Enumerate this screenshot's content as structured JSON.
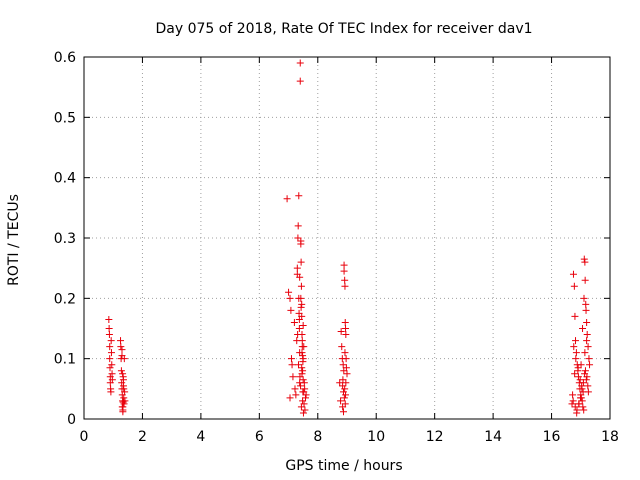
{
  "chart_data": {
    "type": "scatter",
    "title": "Day 075 of 2018, Rate Of TEC Index for receiver dav1",
    "xlabel": "GPS time / hours",
    "ylabel": "ROTI / TECUs",
    "xlim": [
      0,
      18
    ],
    "ylim": [
      0,
      0.6
    ],
    "xticks": [
      0,
      2,
      4,
      6,
      8,
      10,
      12,
      14,
      16,
      18
    ],
    "xtick_labels": [
      "0",
      "2",
      "4",
      "6",
      "8",
      "10",
      "12",
      "14",
      "16",
      "18"
    ],
    "yticks": [
      0,
      0.1,
      0.2,
      0.3,
      0.4,
      0.5,
      0.6
    ],
    "ytick_labels": [
      "0",
      "0.1",
      "0.2",
      "0.3",
      "0.4",
      "0.5",
      "0.6"
    ],
    "grid": true,
    "marker": "+",
    "color": "#e8000b",
    "series": [
      {
        "x": [
          0.85,
          0.86,
          0.87,
          0.88,
          0.88,
          0.89,
          0.9,
          0.9,
          0.91,
          0.92,
          0.93,
          0.94,
          0.95,
          0.96,
          0.97,
          1.25,
          1.26,
          1.27,
          1.28,
          1.29,
          1.3,
          1.31,
          1.32,
          1.33,
          1.33,
          1.34,
          1.35,
          1.36,
          1.37,
          1.38,
          1.39,
          1.4,
          1.3,
          1.31,
          1.33,
          1.35,
          1.36,
          1.3,
          1.32,
          1.34,
          6.95,
          7.0,
          7.05,
          7.05,
          7.08,
          7.1,
          7.12,
          7.15,
          7.2,
          7.22,
          7.25,
          7.28,
          7.3,
          7.3,
          7.32,
          7.33,
          7.35,
          7.35,
          7.37,
          7.38,
          7.38,
          7.4,
          7.4,
          7.42,
          7.42,
          7.43,
          7.44,
          7.45,
          7.45,
          7.46,
          7.47,
          7.48,
          7.48,
          7.5,
          7.5,
          7.52,
          7.53,
          7.55,
          7.56,
          7.58,
          7.6,
          7.45,
          7.47,
          7.5,
          7.36,
          7.39,
          7.41,
          7.44,
          7.46,
          7.49,
          7.51,
          7.54,
          7.31,
          7.34,
          7.37,
          7.43,
          7.46,
          7.49,
          7.52,
          7.38,
          7.42,
          7.48,
          8.75,
          8.78,
          8.8,
          8.82,
          8.84,
          8.85,
          8.86,
          8.88,
          8.9,
          8.9,
          8.92,
          8.93,
          8.94,
          8.95,
          8.96,
          8.97,
          8.98,
          9.0,
          8.85,
          8.88,
          8.91,
          8.93,
          8.96,
          8.89,
          8.92,
          8.95,
          8.87,
          8.94,
          16.7,
          16.72,
          16.75,
          16.78,
          16.8,
          16.82,
          16.85,
          16.88,
          16.9,
          16.92,
          16.95,
          16.97,
          17.0,
          17.02,
          17.05,
          17.07,
          17.1,
          17.12,
          17.14,
          17.15,
          17.17,
          17.18,
          17.2,
          17.22,
          17.25,
          17.28,
          17.3,
          16.76,
          16.83,
          16.91,
          16.98,
          17.03,
          17.08,
          17.13,
          17.19,
          17.24,
          16.74,
          16.81,
          16.87,
          16.93,
          16.99,
          17.04,
          17.09,
          17.16,
          17.21,
          17.26,
          17.11,
          17.06,
          17.14,
          17.2,
          17.01,
          16.86,
          16.79,
          16.94
        ],
        "y": [
          0.165,
          0.15,
          0.14,
          0.12,
          0.1,
          0.085,
          0.07,
          0.06,
          0.05,
          0.045,
          0.13,
          0.11,
          0.09,
          0.075,
          0.065,
          0.13,
          0.12,
          0.1,
          0.08,
          0.06,
          0.05,
          0.04,
          0.03,
          0.02,
          0.015,
          0.07,
          0.055,
          0.035,
          0.025,
          0.1,
          0.045,
          0.03,
          0.105,
          0.02,
          0.012,
          0.065,
          0.05,
          0.115,
          0.075,
          0.028,
          0.365,
          0.21,
          0.2,
          0.035,
          0.18,
          0.1,
          0.09,
          0.07,
          0.16,
          0.05,
          0.04,
          0.13,
          0.24,
          0.25,
          0.3,
          0.32,
          0.37,
          0.2,
          0.15,
          0.11,
          0.06,
          0.59,
          0.56,
          0.295,
          0.29,
          0.26,
          0.22,
          0.19,
          0.17,
          0.14,
          0.12,
          0.08,
          0.03,
          0.1,
          0.065,
          0.045,
          0.025,
          0.05,
          0.015,
          0.035,
          0.04,
          0.085,
          0.13,
          0.155,
          0.175,
          0.07,
          0.055,
          0.02,
          0.11,
          0.095,
          0.01,
          0.06,
          0.14,
          0.09,
          0.165,
          0.185,
          0.075,
          0.045,
          0.12,
          0.235,
          0.2,
          0.105,
          0.06,
          0.03,
          0.145,
          0.12,
          0.1,
          0.055,
          0.065,
          0.045,
          0.255,
          0.245,
          0.23,
          0.22,
          0.16,
          0.15,
          0.14,
          0.1,
          0.085,
          0.075,
          0.02,
          0.012,
          0.035,
          0.11,
          0.06,
          0.08,
          0.05,
          0.04,
          0.09,
          0.025,
          0.025,
          0.04,
          0.24,
          0.22,
          0.17,
          0.13,
          0.11,
          0.09,
          0.08,
          0.07,
          0.06,
          0.05,
          0.04,
          0.035,
          0.03,
          0.02,
          0.015,
          0.265,
          0.26,
          0.23,
          0.19,
          0.18,
          0.16,
          0.14,
          0.12,
          0.1,
          0.09,
          0.12,
          0.1,
          0.085,
          0.065,
          0.055,
          0.045,
          0.075,
          0.065,
          0.055,
          0.03,
          0.02,
          0.015,
          0.025,
          0.035,
          0.05,
          0.06,
          0.08,
          0.07,
          0.045,
          0.2,
          0.15,
          0.11,
          0.13,
          0.09,
          0.01,
          0.075,
          0.025
        ]
      }
    ]
  }
}
